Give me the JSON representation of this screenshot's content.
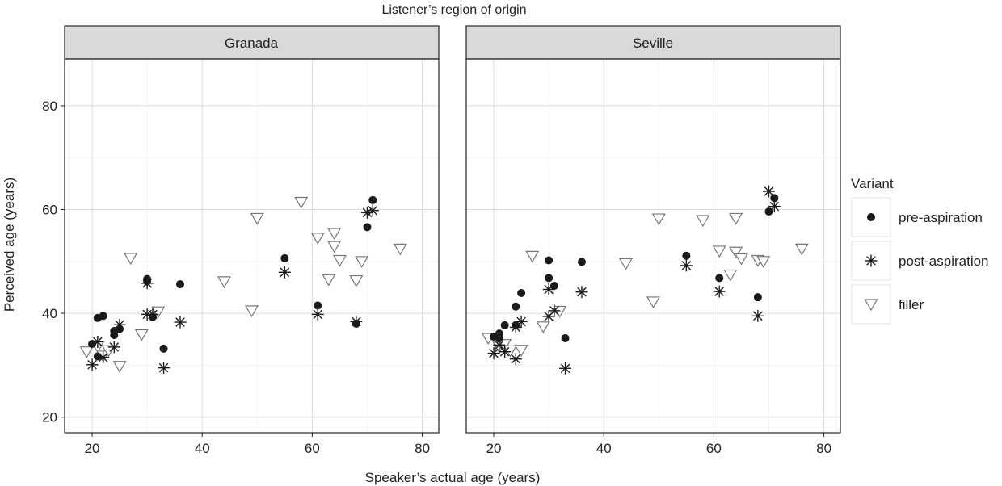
{
  "chart_data": {
    "type": "scatter",
    "title": "Listener’s region of origin",
    "xlabel": "Speaker’s actual age (years)",
    "ylabel": "Perceived age (years)",
    "xlim": [
      15,
      83
    ],
    "ylim": [
      17,
      89
    ],
    "x_ticks": [
      20,
      40,
      60,
      80
    ],
    "y_ticks": [
      20,
      40,
      60,
      80
    ],
    "grid": true,
    "legend": {
      "title": "Variant",
      "placement": "right",
      "entries": [
        {
          "name": "pre-aspiration",
          "marker": "filled-circle"
        },
        {
          "name": "post-aspiration",
          "marker": "asterisk"
        },
        {
          "name": "filler",
          "marker": "open-triangle-down"
        }
      ]
    },
    "panels": [
      {
        "label": "Granada",
        "series": [
          {
            "name": "pre-aspiration",
            "points": [
              [
                20,
                34.1
              ],
              [
                21,
                31.7
              ],
              [
                21,
                39.1
              ],
              [
                22,
                39.5
              ],
              [
                24,
                35.8
              ],
              [
                24,
                36.6
              ],
              [
                25,
                37
              ],
              [
                30,
                46.1
              ],
              [
                30,
                46.6
              ],
              [
                31,
                39.3
              ],
              [
                33,
                33.2
              ],
              [
                36,
                45.6
              ],
              [
                55,
                50.6
              ],
              [
                61,
                41.5
              ],
              [
                68,
                38
              ],
              [
                70,
                56.6
              ],
              [
                71,
                61.8
              ]
            ]
          },
          {
            "name": "post-aspiration",
            "points": [
              [
                20,
                30.1
              ],
              [
                21,
                34.5
              ],
              [
                22,
                31.5
              ],
              [
                24,
                33.5
              ],
              [
                25,
                37.8
              ],
              [
                30,
                45.8
              ],
              [
                30,
                39.8
              ],
              [
                31,
                39.8
              ],
              [
                33,
                29.5
              ],
              [
                36,
                38.3
              ],
              [
                55,
                47.9
              ],
              [
                61,
                39.8
              ],
              [
                68,
                38.4
              ],
              [
                70,
                59.4
              ],
              [
                71,
                59.8
              ]
            ]
          },
          {
            "name": "filler",
            "points": [
              [
                19,
                32.6
              ],
              [
                21,
                33.6
              ],
              [
                22,
                31.8
              ],
              [
                23,
                32.8
              ],
              [
                25,
                29.8
              ],
              [
                27,
                50.6
              ],
              [
                29,
                35.9
              ],
              [
                32,
                40.3
              ],
              [
                44,
                46.1
              ],
              [
                49,
                40.5
              ],
              [
                50,
                58.3
              ],
              [
                58,
                61.4
              ],
              [
                61,
                54.5
              ],
              [
                63,
                46.5
              ],
              [
                64,
                55.4
              ],
              [
                64,
                52.9
              ],
              [
                65,
                50.2
              ],
              [
                68,
                46.3
              ],
              [
                69,
                50
              ],
              [
                76,
                52.4
              ]
            ]
          }
        ]
      },
      {
        "label": "Seville",
        "series": [
          {
            "name": "pre-aspiration",
            "points": [
              [
                20,
                35.5
              ],
              [
                21,
                35.2
              ],
              [
                21,
                36.1
              ],
              [
                22,
                37.7
              ],
              [
                24,
                41.3
              ],
              [
                24,
                37.7
              ],
              [
                25,
                43.9
              ],
              [
                30,
                50.2
              ],
              [
                30,
                46.8
              ],
              [
                31,
                45.3
              ],
              [
                33,
                35.2
              ],
              [
                36,
                49.9
              ],
              [
                55,
                51.1
              ],
              [
                61,
                46.8
              ],
              [
                68,
                43.1
              ],
              [
                70,
                59.6
              ],
              [
                71,
                62.2
              ]
            ]
          },
          {
            "name": "post-aspiration",
            "points": [
              [
                20,
                32.3
              ],
              [
                21,
                33.9
              ],
              [
                22,
                32.6
              ],
              [
                24,
                31.2
              ],
              [
                24,
                37.3
              ],
              [
                25,
                38.4
              ],
              [
                30,
                39.4
              ],
              [
                30,
                44.6
              ],
              [
                31,
                40.5
              ],
              [
                33,
                29.4
              ],
              [
                36,
                44.1
              ],
              [
                55,
                49.2
              ],
              [
                61,
                44.2
              ],
              [
                68,
                39.5
              ],
              [
                70,
                63.5
              ],
              [
                71,
                60.6
              ]
            ]
          },
          {
            "name": "filler",
            "points": [
              [
                19,
                35.2
              ],
              [
                21,
                33.5
              ],
              [
                22,
                34
              ],
              [
                23,
                32.8
              ],
              [
                25,
                32.9
              ],
              [
                27,
                51
              ],
              [
                29,
                37.4
              ],
              [
                32,
                40.4
              ],
              [
                44,
                49.6
              ],
              [
                49,
                42.2
              ],
              [
                50,
                58.2
              ],
              [
                58,
                57.9
              ],
              [
                61,
                52
              ],
              [
                63,
                47.4
              ],
              [
                64,
                58.3
              ],
              [
                64,
                51.8
              ],
              [
                65,
                50.5
              ],
              [
                68,
                50.2
              ],
              [
                69,
                50
              ],
              [
                76,
                52.4
              ]
            ]
          }
        ]
      }
    ]
  }
}
